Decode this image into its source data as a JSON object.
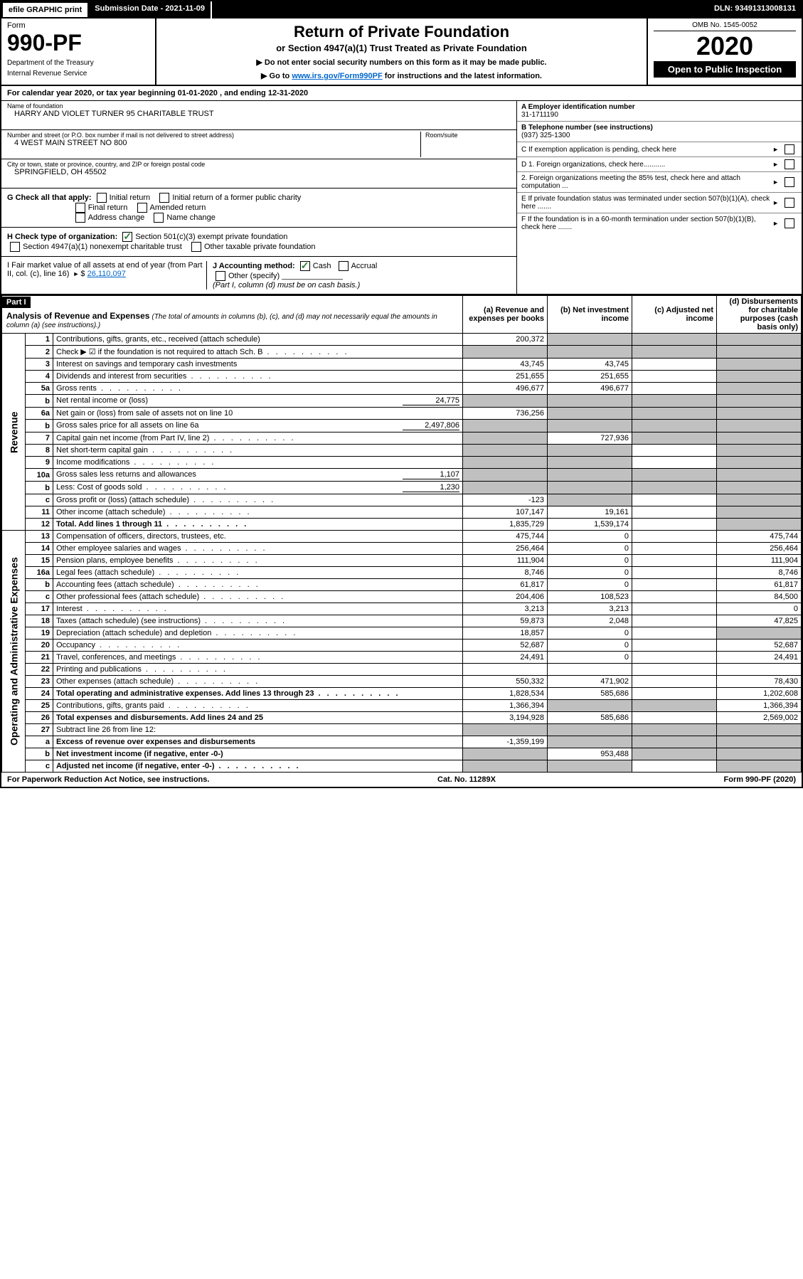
{
  "topbar": {
    "efile": "efile GRAPHIC print",
    "submission": "Submission Date - 2021-11-09",
    "dln": "DLN: 93491313008131"
  },
  "header": {
    "form_label": "Form",
    "form_number": "990-PF",
    "dept1": "Department of the Treasury",
    "dept2": "Internal Revenue Service",
    "title": "Return of Private Foundation",
    "subtitle": "or Section 4947(a)(1) Trust Treated as Private Foundation",
    "note1": "▶ Do not enter social security numbers on this form as it may be made public.",
    "note2_pre": "▶ Go to ",
    "note2_link": "www.irs.gov/Form990PF",
    "note2_post": " for instructions and the latest information.",
    "omb": "OMB No. 1545-0052",
    "year": "2020",
    "open_public": "Open to Public Inspection"
  },
  "cal_year": {
    "pre": "For calendar year 2020, or tax year beginning ",
    "begin": "01-01-2020",
    "mid": " , and ending ",
    "end": "12-31-2020"
  },
  "info": {
    "name_label": "Name of foundation",
    "name": "HARRY AND VIOLET TURNER 95 CHARITABLE TRUST",
    "addr_label": "Number and street (or P.O. box number if mail is not delivered to street address)",
    "addr": "4 WEST MAIN STREET NO 800",
    "room_label": "Room/suite",
    "city_label": "City or town, state or province, country, and ZIP or foreign postal code",
    "city": "SPRINGFIELD, OH  45502",
    "ein_label": "A Employer identification number",
    "ein": "31-1711190",
    "phone_label": "B Telephone number (see instructions)",
    "phone": "(937) 325-1300",
    "c_label": "C If exemption application is pending, check here",
    "d1": "D 1. Foreign organizations, check here...........",
    "d2": "2. Foreign organizations meeting the 85% test, check here and attach computation ...",
    "e": "E If private foundation status was terminated under section 507(b)(1)(A), check here .......",
    "f": "F If the foundation is in a 60-month termination under section 507(b)(1)(B), check here ......."
  },
  "checks": {
    "g_label": "G Check all that apply:",
    "g1": "Initial return",
    "g2": "Initial return of a former public charity",
    "g3": "Final return",
    "g4": "Amended return",
    "g5": "Address change",
    "g6": "Name change",
    "h_label": "H Check type of organization:",
    "h1": "Section 501(c)(3) exempt private foundation",
    "h2": "Section 4947(a)(1) nonexempt charitable trust",
    "h3": "Other taxable private foundation",
    "i_label": "I Fair market value of all assets at end of year (from Part II, col. (c), line 16)",
    "i_val": "26,110,097",
    "j_label": "J Accounting method:",
    "j1": "Cash",
    "j2": "Accrual",
    "j3": "Other (specify)",
    "j_note": "(Part I, column (d) must be on cash basis.)"
  },
  "part1": {
    "tag": "Part I",
    "title": "Analysis of Revenue and Expenses",
    "note": "(The total of amounts in columns (b), (c), and (d) may not necessarily equal the amounts in column (a) (see instructions).)",
    "col_a": "(a) Revenue and expenses per books",
    "col_b": "(b) Net investment income",
    "col_c": "(c) Adjusted net income",
    "col_d": "(d) Disbursements for charitable purposes (cash basis only)",
    "side_revenue": "Revenue",
    "side_expenses": "Operating and Administrative Expenses"
  },
  "rows": [
    {
      "n": "1",
      "l": "Contributions, gifts, grants, etc., received (attach schedule)",
      "a": "200,372",
      "b": "",
      "c": "",
      "d": "",
      "shade_b": true,
      "shade_c": true,
      "shade_d": true
    },
    {
      "n": "2",
      "l": "Check ▶ ☑ if the foundation is not required to attach Sch. B",
      "dots": true,
      "a": "",
      "b": "",
      "c": "",
      "d": "",
      "shade_a": true,
      "shade_b": true,
      "shade_c": true,
      "shade_d": true
    },
    {
      "n": "3",
      "l": "Interest on savings and temporary cash investments",
      "a": "43,745",
      "b": "43,745",
      "c": "",
      "d": "",
      "shade_d": true
    },
    {
      "n": "4",
      "l": "Dividends and interest from securities",
      "dots": true,
      "a": "251,655",
      "b": "251,655",
      "c": "",
      "d": "",
      "shade_d": true
    },
    {
      "n": "5a",
      "l": "Gross rents",
      "dots": true,
      "a": "496,677",
      "b": "496,677",
      "c": "",
      "d": "",
      "shade_d": true
    },
    {
      "n": "b",
      "l": "Net rental income or (loss)",
      "inline": "24,775",
      "a": "",
      "b": "",
      "c": "",
      "d": "",
      "shade_a": true,
      "shade_b": true,
      "shade_c": true,
      "shade_d": true
    },
    {
      "n": "6a",
      "l": "Net gain or (loss) from sale of assets not on line 10",
      "a": "736,256",
      "b": "",
      "c": "",
      "d": "",
      "shade_b": true,
      "shade_c": true,
      "shade_d": true
    },
    {
      "n": "b",
      "l": "Gross sales price for all assets on line 6a",
      "inline": "2,497,806",
      "a": "",
      "b": "",
      "c": "",
      "d": "",
      "shade_a": true,
      "shade_b": true,
      "shade_c": true,
      "shade_d": true
    },
    {
      "n": "7",
      "l": "Capital gain net income (from Part IV, line 2)",
      "dots": true,
      "a": "",
      "b": "727,936",
      "c": "",
      "d": "",
      "shade_a": true,
      "shade_c": true,
      "shade_d": true
    },
    {
      "n": "8",
      "l": "Net short-term capital gain",
      "dots": true,
      "a": "",
      "b": "",
      "c": "",
      "d": "",
      "shade_a": true,
      "shade_b": true,
      "shade_d": true
    },
    {
      "n": "9",
      "l": "Income modifications",
      "dots": true,
      "a": "",
      "b": "",
      "c": "",
      "d": "",
      "shade_a": true,
      "shade_b": true,
      "shade_d": true
    },
    {
      "n": "10a",
      "l": "Gross sales less returns and allowances",
      "inline": "1,107",
      "a": "",
      "b": "",
      "c": "",
      "d": "",
      "shade_a": true,
      "shade_b": true,
      "shade_c": true,
      "shade_d": true
    },
    {
      "n": "b",
      "l": "Less: Cost of goods sold",
      "dots": true,
      "inline": "1,230",
      "a": "",
      "b": "",
      "c": "",
      "d": "",
      "shade_a": true,
      "shade_b": true,
      "shade_c": true,
      "shade_d": true
    },
    {
      "n": "c",
      "l": "Gross profit or (loss) (attach schedule)",
      "dots": true,
      "a": "-123",
      "b": "",
      "c": "",
      "d": "",
      "shade_b": true,
      "shade_d": true
    },
    {
      "n": "11",
      "l": "Other income (attach schedule)",
      "dots": true,
      "a": "107,147",
      "b": "19,161",
      "c": "",
      "d": "",
      "shade_d": true
    },
    {
      "n": "12",
      "l": "Total. Add lines 1 through 11",
      "dots": true,
      "bold": true,
      "a": "1,835,729",
      "b": "1,539,174",
      "c": "",
      "d": "",
      "shade_d": true
    },
    {
      "n": "13",
      "l": "Compensation of officers, directors, trustees, etc.",
      "a": "475,744",
      "b": "0",
      "c": "",
      "d": "475,744"
    },
    {
      "n": "14",
      "l": "Other employee salaries and wages",
      "dots": true,
      "a": "256,464",
      "b": "0",
      "c": "",
      "d": "256,464"
    },
    {
      "n": "15",
      "l": "Pension plans, employee benefits",
      "dots": true,
      "a": "111,904",
      "b": "0",
      "c": "",
      "d": "111,904"
    },
    {
      "n": "16a",
      "l": "Legal fees (attach schedule)",
      "dots": true,
      "a": "8,746",
      "b": "0",
      "c": "",
      "d": "8,746"
    },
    {
      "n": "b",
      "l": "Accounting fees (attach schedule)",
      "dots": true,
      "a": "61,817",
      "b": "0",
      "c": "",
      "d": "61,817"
    },
    {
      "n": "c",
      "l": "Other professional fees (attach schedule)",
      "dots": true,
      "a": "204,406",
      "b": "108,523",
      "c": "",
      "d": "84,500"
    },
    {
      "n": "17",
      "l": "Interest",
      "dots": true,
      "a": "3,213",
      "b": "3,213",
      "c": "",
      "d": "0"
    },
    {
      "n": "18",
      "l": "Taxes (attach schedule) (see instructions)",
      "dots": true,
      "a": "59,873",
      "b": "2,048",
      "c": "",
      "d": "47,825"
    },
    {
      "n": "19",
      "l": "Depreciation (attach schedule) and depletion",
      "dots": true,
      "a": "18,857",
      "b": "0",
      "c": "",
      "d": "",
      "shade_d": true
    },
    {
      "n": "20",
      "l": "Occupancy",
      "dots": true,
      "a": "52,687",
      "b": "0",
      "c": "",
      "d": "52,687"
    },
    {
      "n": "21",
      "l": "Travel, conferences, and meetings",
      "dots": true,
      "a": "24,491",
      "b": "0",
      "c": "",
      "d": "24,491"
    },
    {
      "n": "22",
      "l": "Printing and publications",
      "dots": true,
      "a": "",
      "b": "",
      "c": "",
      "d": ""
    },
    {
      "n": "23",
      "l": "Other expenses (attach schedule)",
      "dots": true,
      "a": "550,332",
      "b": "471,902",
      "c": "",
      "d": "78,430"
    },
    {
      "n": "24",
      "l": "Total operating and administrative expenses. Add lines 13 through 23",
      "dots": true,
      "bold": true,
      "a": "1,828,534",
      "b": "585,686",
      "c": "",
      "d": "1,202,608"
    },
    {
      "n": "25",
      "l": "Contributions, gifts, grants paid",
      "dots": true,
      "a": "1,366,394",
      "b": "",
      "c": "",
      "d": "1,366,394",
      "shade_b": true,
      "shade_c": true
    },
    {
      "n": "26",
      "l": "Total expenses and disbursements. Add lines 24 and 25",
      "bold": true,
      "a": "3,194,928",
      "b": "585,686",
      "c": "",
      "d": "2,569,002"
    },
    {
      "n": "27",
      "l": "Subtract line 26 from line 12:",
      "a": "",
      "b": "",
      "c": "",
      "d": "",
      "shade_a": true,
      "shade_b": true,
      "shade_c": true,
      "shade_d": true
    },
    {
      "n": "a",
      "l": "Excess of revenue over expenses and disbursements",
      "bold": true,
      "a": "-1,359,199",
      "b": "",
      "c": "",
      "d": "",
      "shade_b": true,
      "shade_c": true,
      "shade_d": true
    },
    {
      "n": "b",
      "l": "Net investment income (if negative, enter -0-)",
      "bold": true,
      "a": "",
      "b": "953,488",
      "c": "",
      "d": "",
      "shade_a": true,
      "shade_c": true,
      "shade_d": true
    },
    {
      "n": "c",
      "l": "Adjusted net income (if negative, enter -0-)",
      "dots": true,
      "bold": true,
      "a": "",
      "b": "",
      "c": "",
      "d": "",
      "shade_a": true,
      "shade_b": true,
      "shade_d": true
    }
  ],
  "footer": {
    "left": "For Paperwork Reduction Act Notice, see instructions.",
    "mid": "Cat. No. 11289X",
    "right": "Form 990-PF (2020)"
  }
}
